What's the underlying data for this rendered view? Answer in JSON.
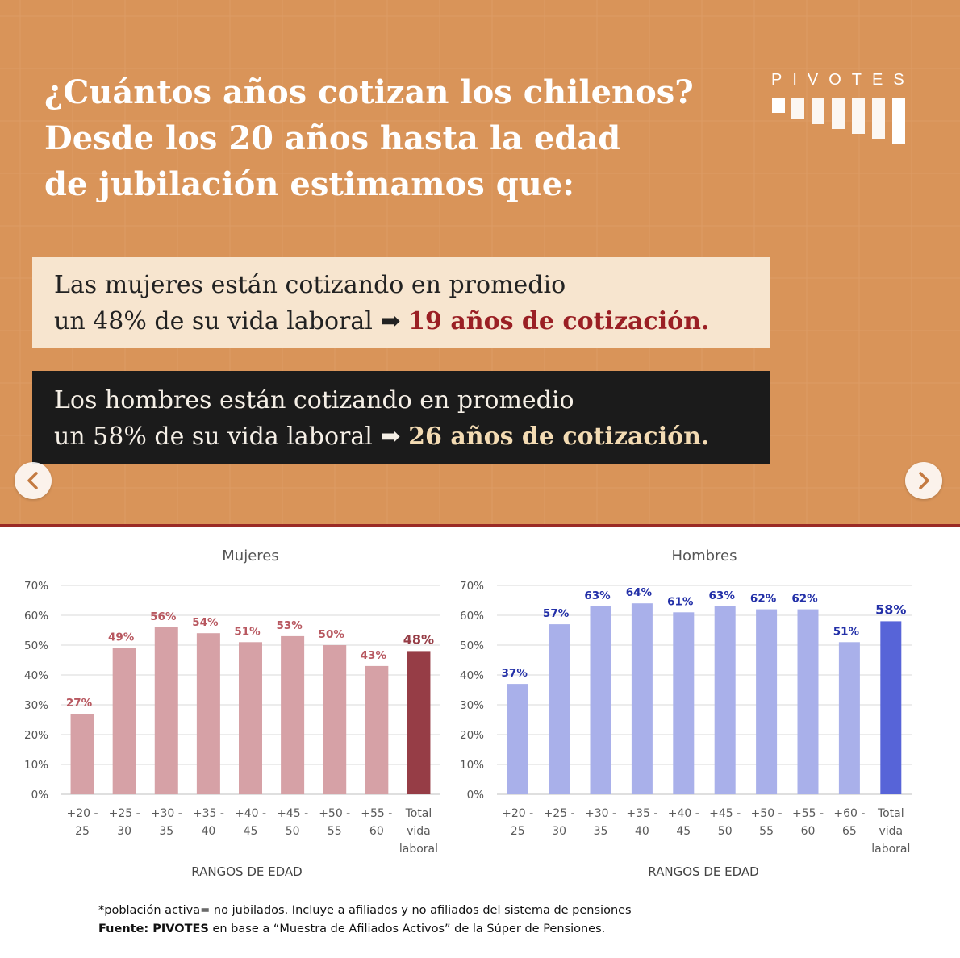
{
  "hero": {
    "title_lines": [
      "¿Cuántos años cotizan los chilenos?",
      "Desde los 20 años hasta la edad",
      "de jubilación estimamos que:"
    ],
    "logo_text": "PIVOTES",
    "women": {
      "line1": "Las mujeres están cotizando en promedio",
      "line2": "un 48% de su vida laboral",
      "arrow": "➡",
      "highlight": "19 años de cotización."
    },
    "men": {
      "line1": "Los hombres están cotizando en promedio",
      "line2": "un 58% de su vida laboral",
      "arrow": "➡",
      "highlight": "26 años de cotización."
    },
    "nav": {
      "prev_icon": "chevron-left-icon",
      "next_icon": "chevron-right-icon"
    }
  },
  "chart_data": [
    {
      "type": "bar",
      "title": "Mujeres",
      "xlabel": "RANGOS DE EDAD",
      "ylabel": "",
      "ylim": [
        0,
        70
      ],
      "yticks": [
        "0%",
        "10%",
        "20%",
        "30%",
        "40%",
        "50%",
        "60%",
        "70%"
      ],
      "categories": [
        [
          "+20 -",
          "25"
        ],
        [
          "+25 -",
          "30"
        ],
        [
          "+30 -",
          "35"
        ],
        [
          "+35 -",
          "40"
        ],
        [
          "+40 -",
          "45"
        ],
        [
          "+45 -",
          "50"
        ],
        [
          "+50 -",
          "55"
        ],
        [
          "+55 -",
          "60"
        ],
        [
          "Total",
          "vida",
          "laboral"
        ]
      ],
      "values": [
        27,
        49,
        56,
        54,
        51,
        53,
        50,
        43,
        48
      ],
      "labels": [
        "27%",
        "49%",
        "56%",
        "54%",
        "51%",
        "53%",
        "50%",
        "43%",
        "48%"
      ],
      "colors": {
        "bar": "#d6a1a6",
        "total": "#963d46",
        "label": "#b85860",
        "total_label": "#963d46"
      },
      "grid": true
    },
    {
      "type": "bar",
      "title": "Hombres",
      "xlabel": "RANGOS DE EDAD",
      "ylabel": "",
      "ylim": [
        0,
        70
      ],
      "yticks": [
        "0%",
        "10%",
        "20%",
        "30%",
        "40%",
        "50%",
        "60%",
        "70%"
      ],
      "categories": [
        [
          "+20 -",
          "25"
        ],
        [
          "+25 -",
          "30"
        ],
        [
          "+30 -",
          "35"
        ],
        [
          "+35 -",
          "40"
        ],
        [
          "+40 -",
          "45"
        ],
        [
          "+45 -",
          "50"
        ],
        [
          "+50 -",
          "55"
        ],
        [
          "+55 -",
          "60"
        ],
        [
          "+60 -",
          "65"
        ],
        [
          "Total",
          "vida",
          "laboral"
        ]
      ],
      "values": [
        37,
        57,
        63,
        64,
        61,
        63,
        62,
        62,
        51,
        58
      ],
      "labels": [
        "37%",
        "57%",
        "63%",
        "64%",
        "61%",
        "63%",
        "62%",
        "62%",
        "51%",
        "58%"
      ],
      "colors": {
        "bar": "#a9b0ea",
        "total": "#5764d8",
        "label": "#2330a8",
        "total_label": "#2330a8"
      },
      "grid": true
    }
  ],
  "footer": {
    "note": "*población activa= no jubilados. Incluye a afiliados y no afiliados del sistema de pensiones",
    "source_label": "Fuente: PIVOTES",
    "source_text": " en base a “Muestra de Afiliados Activos” de la Súper de Pensiones."
  }
}
